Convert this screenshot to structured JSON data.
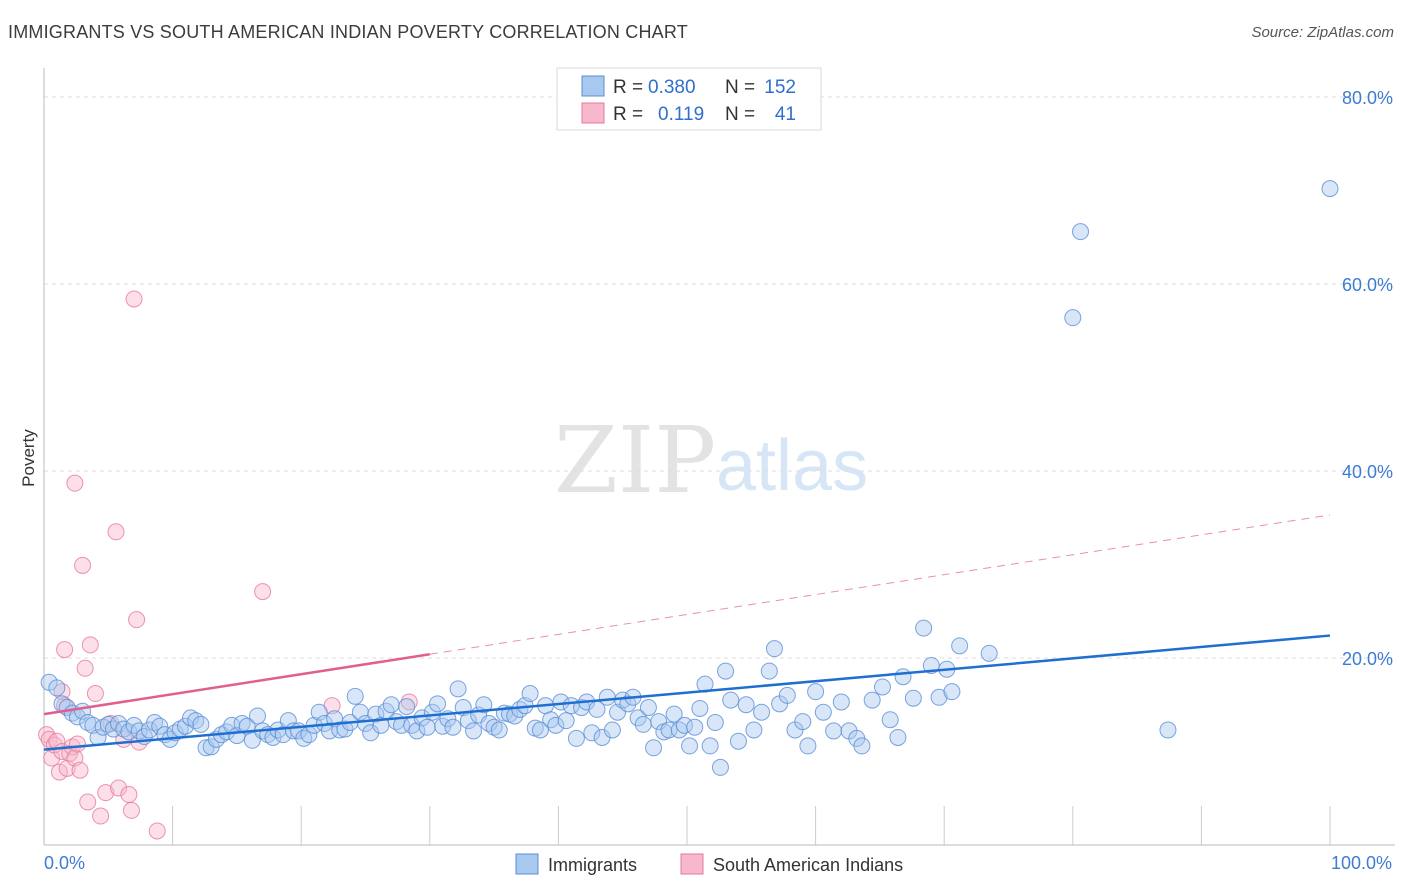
{
  "header": {
    "title": "IMMIGRANTS VS SOUTH AMERICAN INDIAN POVERTY CORRELATION CHART",
    "source": "Source: ZipAtlas.com"
  },
  "watermark": {
    "part1": "ZIP",
    "part2": "atlas"
  },
  "legend": {
    "rows": [
      {
        "r_label": "R =",
        "r_value": "0.380",
        "n_label": "N =",
        "n_value": "152",
        "color": "#a8c8f0"
      },
      {
        "r_label": "R =",
        "r_value": "0.119",
        "n_label": "N =",
        "n_value": "41",
        "color": "#f8b8cb"
      }
    ]
  },
  "bottom_legend": {
    "immigrants": "Immigrants",
    "sai": "South American Indians"
  },
  "colors": {
    "immigrants_fill": "#a8c8f0",
    "immigrants_stroke": "#5a8fd6",
    "immigrants_line": "#1f6fd1",
    "sai_fill": "#f8b8cb",
    "sai_stroke": "#e57a9c",
    "sai_line": "#e0608d",
    "tick_text": "#3d7bd4",
    "grid": "#dddddd"
  },
  "chart_data": {
    "type": "scatter",
    "title": "IMMIGRANTS VS SOUTH AMERICAN INDIAN POVERTY CORRELATION CHART",
    "xlabel": "",
    "ylabel": "Poverty",
    "xlim": [
      0,
      100
    ],
    "ylim": [
      0,
      80
    ],
    "x_tick_labels": [
      "0.0%",
      "100.0%"
    ],
    "y_tick_labels": [
      "20.0%",
      "40.0%",
      "60.0%",
      "80.0%"
    ],
    "y_ticks": [
      20,
      40,
      60,
      80
    ],
    "grid": true,
    "series": [
      {
        "name": "Immigrants",
        "r": 0.38,
        "n": 152,
        "trend": {
          "x": [
            0,
            100
          ],
          "y": [
            10.2,
            22.4
          ]
        },
        "points": [
          [
            0.4,
            17.4
          ],
          [
            1.0,
            16.8
          ],
          [
            1.4,
            15.1
          ],
          [
            1.8,
            14.7
          ],
          [
            2.2,
            14.1
          ],
          [
            2.6,
            13.7
          ],
          [
            3.0,
            14.3
          ],
          [
            3.4,
            13.1
          ],
          [
            3.8,
            12.8
          ],
          [
            4.2,
            11.5
          ],
          [
            4.6,
            12.6
          ],
          [
            5.0,
            12.9
          ],
          [
            5.4,
            12.4
          ],
          [
            5.8,
            13.0
          ],
          [
            6.2,
            12.4
          ],
          [
            6.6,
            12.1
          ],
          [
            7.0,
            12.8
          ],
          [
            7.4,
            12.2
          ],
          [
            7.8,
            11.6
          ],
          [
            8.2,
            12.3
          ],
          [
            8.6,
            13.1
          ],
          [
            9.0,
            12.7
          ],
          [
            9.4,
            11.8
          ],
          [
            9.8,
            11.3
          ],
          [
            10.2,
            12.0
          ],
          [
            10.6,
            12.4
          ],
          [
            11.0,
            12.7
          ],
          [
            11.4,
            13.6
          ],
          [
            11.8,
            13.3
          ],
          [
            12.2,
            12.9
          ],
          [
            12.6,
            10.4
          ],
          [
            13.0,
            10.5
          ],
          [
            13.4,
            11.3
          ],
          [
            13.8,
            11.8
          ],
          [
            14.2,
            12.1
          ],
          [
            14.6,
            12.8
          ],
          [
            15.0,
            11.7
          ],
          [
            15.4,
            13.0
          ],
          [
            15.8,
            12.7
          ],
          [
            16.2,
            11.2
          ],
          [
            16.6,
            13.8
          ],
          [
            17.0,
            12.2
          ],
          [
            17.4,
            11.8
          ],
          [
            17.8,
            11.5
          ],
          [
            18.2,
            12.3
          ],
          [
            18.6,
            11.8
          ],
          [
            19.0,
            13.3
          ],
          [
            19.4,
            12.2
          ],
          [
            19.8,
            12.2
          ],
          [
            20.2,
            11.4
          ],
          [
            20.6,
            11.8
          ],
          [
            21.0,
            12.8
          ],
          [
            21.4,
            14.2
          ],
          [
            21.8,
            13.0
          ],
          [
            22.2,
            12.2
          ],
          [
            22.6,
            13.5
          ],
          [
            23.0,
            12.3
          ],
          [
            23.4,
            12.4
          ],
          [
            23.8,
            13.1
          ],
          [
            24.2,
            15.9
          ],
          [
            24.6,
            14.2
          ],
          [
            25.0,
            13.0
          ],
          [
            25.4,
            12.0
          ],
          [
            25.8,
            14.0
          ],
          [
            26.2,
            12.8
          ],
          [
            26.6,
            14.3
          ],
          [
            27.0,
            15.0
          ],
          [
            27.4,
            13.2
          ],
          [
            27.8,
            12.8
          ],
          [
            28.2,
            14.8
          ],
          [
            28.6,
            12.8
          ],
          [
            29.0,
            12.2
          ],
          [
            29.4,
            13.6
          ],
          [
            29.8,
            12.6
          ],
          [
            30.2,
            14.2
          ],
          [
            30.6,
            15.1
          ],
          [
            31.0,
            12.7
          ],
          [
            31.4,
            13.5
          ],
          [
            31.8,
            12.6
          ],
          [
            32.2,
            16.7
          ],
          [
            32.6,
            14.7
          ],
          [
            33.0,
            13.3
          ],
          [
            33.4,
            12.2
          ],
          [
            33.8,
            13.9
          ],
          [
            34.2,
            15.0
          ],
          [
            34.6,
            13.0
          ],
          [
            35.0,
            12.6
          ],
          [
            35.4,
            12.3
          ],
          [
            35.8,
            14.1
          ],
          [
            36.2,
            14.0
          ],
          [
            36.6,
            13.8
          ],
          [
            37.0,
            14.5
          ],
          [
            37.4,
            14.9
          ],
          [
            37.8,
            16.2
          ],
          [
            38.2,
            12.5
          ],
          [
            38.6,
            12.3
          ],
          [
            39.0,
            14.9
          ],
          [
            39.4,
            13.4
          ],
          [
            39.8,
            12.8
          ],
          [
            40.2,
            15.3
          ],
          [
            40.6,
            13.3
          ],
          [
            41.0,
            14.9
          ],
          [
            41.4,
            11.4
          ],
          [
            41.8,
            14.7
          ],
          [
            42.2,
            15.3
          ],
          [
            42.6,
            12.0
          ],
          [
            43.0,
            14.5
          ],
          [
            43.4,
            11.5
          ],
          [
            43.8,
            15.8
          ],
          [
            44.2,
            12.3
          ],
          [
            44.6,
            14.2
          ],
          [
            45.0,
            15.5
          ],
          [
            45.4,
            15.1
          ],
          [
            45.8,
            15.8
          ],
          [
            46.2,
            13.6
          ],
          [
            46.6,
            12.9
          ],
          [
            47.0,
            14.7
          ],
          [
            47.4,
            10.4
          ],
          [
            47.8,
            13.2
          ],
          [
            48.2,
            12.1
          ],
          [
            48.6,
            12.3
          ],
          [
            49.0,
            14.0
          ],
          [
            49.4,
            12.3
          ],
          [
            49.8,
            12.8
          ],
          [
            50.2,
            10.6
          ],
          [
            50.6,
            12.6
          ],
          [
            51.0,
            14.6
          ],
          [
            51.4,
            17.2
          ],
          [
            51.8,
            10.6
          ],
          [
            52.2,
            13.1
          ],
          [
            52.6,
            8.3
          ],
          [
            53.0,
            18.6
          ],
          [
            53.4,
            15.5
          ],
          [
            54.0,
            11.1
          ],
          [
            54.6,
            15.0
          ],
          [
            55.2,
            12.3
          ],
          [
            55.8,
            14.2
          ],
          [
            56.4,
            18.6
          ],
          [
            56.8,
            21.0
          ],
          [
            57.2,
            15.1
          ],
          [
            57.8,
            16.0
          ],
          [
            58.4,
            12.3
          ],
          [
            59.0,
            13.2
          ],
          [
            59.4,
            10.6
          ],
          [
            60.0,
            16.4
          ],
          [
            60.6,
            14.2
          ],
          [
            61.4,
            12.2
          ],
          [
            62.0,
            15.3
          ],
          [
            62.6,
            12.2
          ],
          [
            63.2,
            11.4
          ],
          [
            63.6,
            10.6
          ],
          [
            64.4,
            15.5
          ],
          [
            65.2,
            16.9
          ],
          [
            65.8,
            13.4
          ],
          [
            66.4,
            11.5
          ],
          [
            66.8,
            18.0
          ],
          [
            67.6,
            15.7
          ],
          [
            68.4,
            23.2
          ],
          [
            69.0,
            19.2
          ],
          [
            69.6,
            15.8
          ],
          [
            70.2,
            18.8
          ],
          [
            70.6,
            16.4
          ],
          [
            71.2,
            21.3
          ],
          [
            73.5,
            20.5
          ],
          [
            80.0,
            56.4
          ],
          [
            87.4,
            12.3
          ],
          [
            80.6,
            65.6
          ],
          [
            100.0,
            70.2
          ]
        ]
      },
      {
        "name": "South American Indians",
        "r": 0.119,
        "n": 41,
        "trend": {
          "x": [
            0,
            30
          ],
          "y": [
            14.0,
            20.4
          ]
        },
        "trend_extended": {
          "x": [
            30,
            100
          ],
          "y": [
            20.4,
            35.3
          ]
        },
        "points": [
          [
            0.2,
            11.8
          ],
          [
            0.4,
            11.3
          ],
          [
            0.6,
            9.3
          ],
          [
            0.8,
            10.7
          ],
          [
            1.0,
            11.1
          ],
          [
            1.2,
            7.8
          ],
          [
            1.4,
            16.4
          ],
          [
            1.4,
            10.0
          ],
          [
            1.6,
            20.9
          ],
          [
            1.6,
            14.9
          ],
          [
            1.8,
            8.2
          ],
          [
            2.0,
            9.8
          ],
          [
            2.2,
            10.5
          ],
          [
            2.4,
            38.7
          ],
          [
            2.4,
            9.3
          ],
          [
            2.6,
            10.8
          ],
          [
            2.8,
            8.0
          ],
          [
            3.0,
            29.9
          ],
          [
            3.2,
            18.9
          ],
          [
            3.4,
            4.6
          ],
          [
            3.6,
            21.4
          ],
          [
            4.0,
            16.2
          ],
          [
            4.4,
            3.1
          ],
          [
            4.8,
            5.6
          ],
          [
            5.2,
            13.0
          ],
          [
            5.6,
            33.5
          ],
          [
            5.8,
            6.1
          ],
          [
            6.2,
            11.3
          ],
          [
            6.6,
            5.4
          ],
          [
            6.8,
            3.7
          ],
          [
            7.0,
            58.4
          ],
          [
            7.2,
            24.1
          ],
          [
            7.4,
            11.0
          ],
          [
            8.8,
            1.5
          ],
          [
            17.0,
            27.1
          ],
          [
            22.4,
            14.9
          ],
          [
            28.4,
            15.3
          ]
        ]
      }
    ]
  }
}
